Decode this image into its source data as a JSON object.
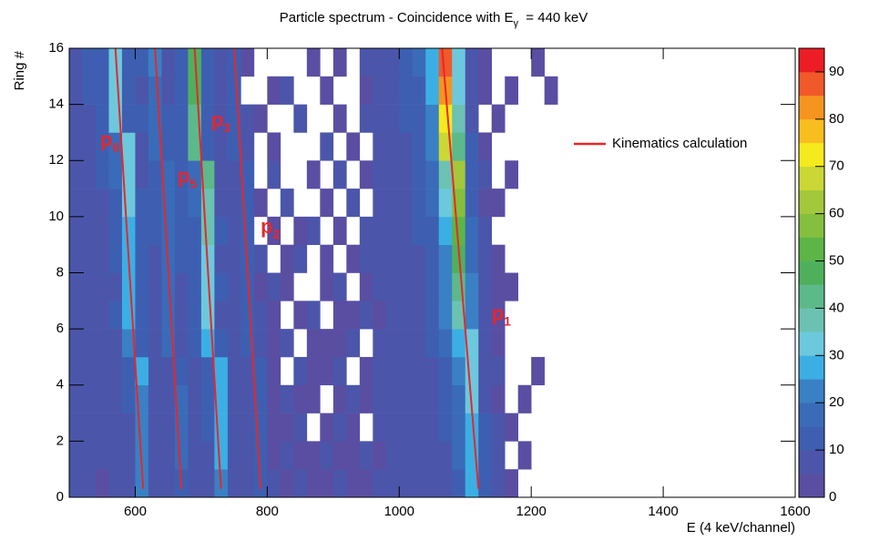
{
  "chart_data": {
    "type": "heatmap",
    "title": "Particle spectrum - Coincidence with E",
    "title_sub": "γ",
    "title_rest": "  = 440 keV",
    "xlabel": "E (4 keV/channel)",
    "ylabel": "Ring #",
    "xlim": [
      500,
      1600
    ],
    "xticks": [
      600,
      800,
      1000,
      1200,
      1400,
      1600
    ],
    "ylim": [
      0,
      16
    ],
    "yticks": [
      0,
      2,
      4,
      6,
      8,
      10,
      12,
      14,
      16
    ],
    "zlim": [
      0,
      95
    ],
    "zticks": [
      0,
      10,
      20,
      30,
      40,
      50,
      60,
      70,
      80,
      90
    ],
    "colorscale": [
      "#5a4ea2",
      "#4b56aa",
      "#3e5fb1",
      "#3a6bb8",
      "#3a80c4",
      "#3bafe4",
      "#6cc9dd",
      "#6bc2b2",
      "#5cb98a",
      "#4fb05c",
      "#5db447",
      "#84bf3e",
      "#a3c83b",
      "#cbd735",
      "#f4ea1e",
      "#f8be1f",
      "#f5941f",
      "#f0592a",
      "#ec1d25"
    ],
    "xbins": [
      500,
      520,
      540,
      560,
      580,
      600,
      620,
      640,
      660,
      680,
      700,
      720,
      740,
      760,
      780,
      800,
      820,
      840,
      860,
      880,
      900,
      920,
      940,
      960,
      980,
      1000,
      1020,
      1040,
      1060,
      1080,
      1100,
      1120,
      1140,
      1160,
      1180,
      1200,
      1220,
      1240,
      1260
    ],
    "ybins": [
      0,
      1,
      2,
      3,
      4,
      5,
      6,
      7,
      8,
      9,
      10,
      11,
      12,
      13,
      14,
      15,
      16
    ],
    "z": [
      [
        5,
        6,
        4,
        6,
        7,
        22,
        8,
        6,
        14,
        7,
        8,
        24,
        9,
        6,
        11,
        5,
        4,
        5,
        3,
        4,
        5,
        3,
        4,
        5,
        6,
        5,
        6,
        7,
        8,
        14,
        26,
        12,
        5,
        2,
        0,
        0,
        0,
        0
      ],
      [
        6,
        5,
        7,
        5,
        8,
        21,
        9,
        5,
        15,
        6,
        9,
        25,
        8,
        5,
        10,
        4,
        5,
        3,
        4,
        5,
        3,
        4,
        6,
        4,
        5,
        6,
        7,
        6,
        9,
        15,
        27,
        11,
        6,
        0,
        2,
        0,
        0,
        0
      ],
      [
        5,
        7,
        6,
        8,
        9,
        23,
        7,
        6,
        16,
        7,
        10,
        26,
        7,
        6,
        12,
        4,
        3,
        5,
        0,
        4,
        5,
        3,
        0,
        6,
        5,
        7,
        6,
        8,
        10,
        17,
        28,
        10,
        5,
        2,
        0,
        0,
        0,
        0
      ],
      [
        6,
        6,
        5,
        7,
        10,
        24,
        8,
        7,
        15,
        8,
        11,
        27,
        8,
        5,
        11,
        3,
        5,
        4,
        3,
        0,
        4,
        6,
        3,
        5,
        6,
        6,
        8,
        7,
        11,
        18,
        30,
        9,
        4,
        0,
        3,
        0,
        0,
        0
      ],
      [
        7,
        5,
        6,
        8,
        12,
        25,
        7,
        6,
        14,
        9,
        13,
        28,
        7,
        6,
        10,
        4,
        0,
        5,
        4,
        3,
        5,
        0,
        4,
        6,
        5,
        7,
        7,
        9,
        13,
        22,
        32,
        8,
        5,
        0,
        0,
        2,
        0,
        0
      ],
      [
        6,
        6,
        7,
        9,
        24,
        14,
        8,
        16,
        9,
        12,
        28,
        10,
        6,
        12,
        6,
        4,
        5,
        0,
        3,
        4,
        3,
        5,
        0,
        5,
        6,
        8,
        8,
        10,
        16,
        28,
        30,
        7,
        4,
        0,
        0,
        0,
        0,
        0
      ],
      [
        5,
        7,
        6,
        10,
        26,
        12,
        9,
        15,
        8,
        11,
        30,
        9,
        7,
        11,
        5,
        3,
        0,
        4,
        5,
        0,
        4,
        3,
        6,
        4,
        7,
        7,
        9,
        11,
        20,
        36,
        24,
        6,
        3,
        0,
        0,
        0,
        0,
        0
      ],
      [
        6,
        6,
        8,
        9,
        27,
        13,
        8,
        16,
        9,
        12,
        32,
        10,
        6,
        12,
        4,
        5,
        3,
        0,
        0,
        4,
        5,
        0,
        4,
        6,
        6,
        8,
        8,
        12,
        22,
        40,
        20,
        5,
        4,
        2,
        0,
        0,
        0,
        0
      ],
      [
        7,
        5,
        7,
        11,
        28,
        12,
        9,
        17,
        10,
        13,
        34,
        9,
        7,
        11,
        5,
        0,
        4,
        5,
        0,
        3,
        0,
        4,
        5,
        5,
        6,
        7,
        9,
        13,
        24,
        48,
        18,
        6,
        3,
        0,
        0,
        0,
        0,
        0
      ],
      [
        6,
        6,
        8,
        12,
        29,
        11,
        10,
        16,
        11,
        14,
        36,
        10,
        6,
        10,
        0,
        4,
        0,
        3,
        5,
        0,
        4,
        0,
        5,
        6,
        7,
        8,
        10,
        14,
        28,
        52,
        16,
        5,
        0,
        0,
        0,
        0,
        0,
        0
      ],
      [
        5,
        7,
        9,
        14,
        30,
        10,
        11,
        17,
        10,
        15,
        38,
        9,
        7,
        11,
        4,
        0,
        5,
        0,
        0,
        4,
        0,
        5,
        0,
        6,
        6,
        8,
        10,
        15,
        32,
        58,
        14,
        4,
        3,
        0,
        0,
        0,
        0,
        0
      ],
      [
        6,
        8,
        10,
        15,
        31,
        9,
        12,
        18,
        11,
        16,
        40,
        8,
        6,
        10,
        0,
        5,
        0,
        0,
        4,
        0,
        5,
        0,
        4,
        5,
        7,
        9,
        11,
        16,
        36,
        62,
        12,
        5,
        0,
        2,
        0,
        0,
        0,
        0
      ],
      [
        7,
        8,
        11,
        16,
        32,
        9,
        17,
        10,
        10,
        42,
        14,
        7,
        11,
        6,
        0,
        4,
        0,
        0,
        0,
        5,
        0,
        4,
        0,
        6,
        7,
        9,
        12,
        22,
        68,
        40,
        10,
        4,
        0,
        0,
        0,
        0,
        0,
        0
      ],
      [
        6,
        9,
        12,
        30,
        14,
        10,
        18,
        10,
        12,
        44,
        13,
        7,
        12,
        5,
        4,
        0,
        0,
        5,
        0,
        0,
        4,
        0,
        5,
        6,
        8,
        10,
        13,
        24,
        74,
        36,
        9,
        0,
        3,
        0,
        0,
        0,
        0,
        0
      ],
      [
        7,
        10,
        13,
        31,
        13,
        9,
        19,
        9,
        13,
        46,
        12,
        6,
        12,
        0,
        0,
        4,
        5,
        0,
        0,
        4,
        0,
        0,
        4,
        6,
        8,
        10,
        14,
        26,
        80,
        32,
        8,
        3,
        0,
        2,
        0,
        0,
        3,
        0
      ],
      [
        8,
        10,
        14,
        32,
        12,
        10,
        20,
        9,
        12,
        48,
        11,
        7,
        13,
        4,
        0,
        0,
        0,
        0,
        4,
        0,
        3,
        0,
        5,
        6,
        9,
        11,
        15,
        28,
        85,
        30,
        7,
        4,
        0,
        0,
        0,
        3,
        0,
        0
      ]
    ],
    "lines": {
      "name": "Kinematics calculation",
      "color": "#e8262b",
      "series": [
        {
          "x": [
            1065,
            1120
          ],
          "y": [
            16,
            0.3
          ]
        },
        {
          "x": [
            750,
            790
          ],
          "y": [
            16,
            0.3
          ]
        },
        {
          "x": [
            690,
            730
          ],
          "y": [
            16,
            0.3
          ]
        },
        {
          "x": [
            630,
            670
          ],
          "y": [
            16,
            0.3
          ]
        },
        {
          "x": [
            570,
            612
          ],
          "y": [
            16,
            0.3
          ]
        }
      ]
    },
    "legend_position": "upper right",
    "annotations": [
      {
        "text": "p",
        "sub": "6",
        "x": 547,
        "y": 12.7
      },
      {
        "text": "p",
        "sub": "5",
        "x": 664,
        "y": 11.4
      },
      {
        "text": "p",
        "sub": "3",
        "x": 715,
        "y": 13.4
      },
      {
        "text": "p",
        "sub": "2",
        "x": 790,
        "y": 9.6
      },
      {
        "text": "p",
        "sub": "1",
        "x": 1140,
        "y": 6.5
      }
    ]
  }
}
